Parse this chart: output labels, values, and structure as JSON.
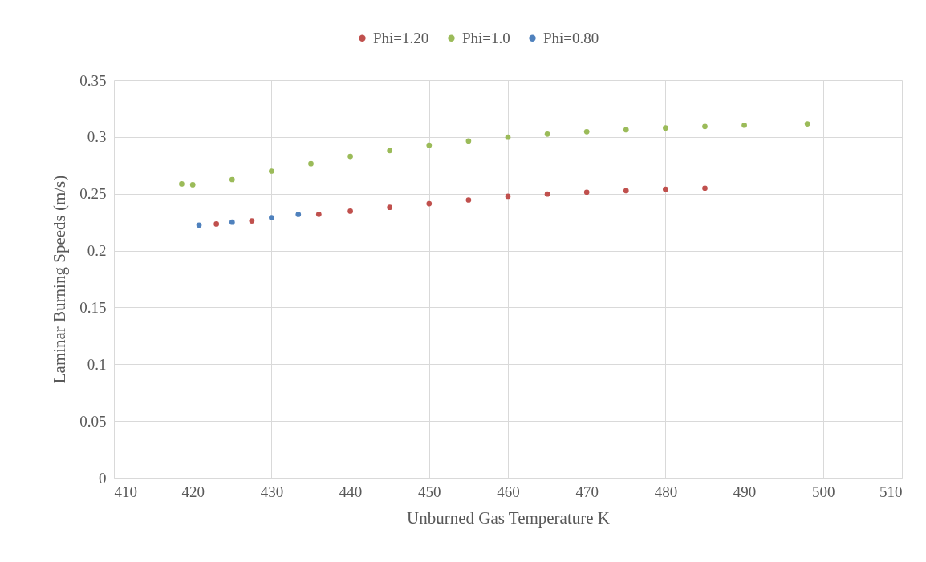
{
  "chart_data": {
    "type": "scatter",
    "xlabel": "Unburned Gas Temperature K",
    "ylabel": "Laminar Burning Speeds (m/s)",
    "xlim": [
      410,
      510
    ],
    "xticks": [
      410,
      420,
      430,
      440,
      450,
      460,
      470,
      480,
      490,
      500,
      510
    ],
    "ylim": [
      0,
      0.35
    ],
    "yticks": [
      0,
      0.05,
      0.1,
      0.15,
      0.2,
      0.25,
      0.3,
      0.35
    ],
    "grid": true,
    "legend": "top",
    "marker": "circle",
    "series": [
      {
        "name": "Phi=1.20",
        "color": "#c0504d",
        "x": [
          423,
          427.5,
          436,
          440,
          445,
          450,
          455,
          460,
          465,
          470,
          475,
          480,
          485
        ],
        "values": [
          0.2234,
          0.2261,
          0.2319,
          0.2347,
          0.238,
          0.2413,
          0.2445,
          0.2477,
          0.2497,
          0.2514,
          0.2527,
          0.2539,
          0.2549
        ]
      },
      {
        "name": "Phi=1.0",
        "color": "#9bbb59",
        "x": [
          418.6,
          420,
          425,
          430,
          435,
          440,
          445,
          450,
          455,
          460,
          465,
          470,
          475,
          480,
          485,
          490,
          498
        ],
        "values": [
          0.2587,
          0.258,
          0.2625,
          0.2699,
          0.2765,
          0.2829,
          0.288,
          0.2927,
          0.2965,
          0.2998,
          0.3025,
          0.3046,
          0.3063,
          0.3079,
          0.3092,
          0.3103,
          0.3115
        ]
      },
      {
        "name": "Phi=0.80",
        "color": "#4f81bd",
        "x": [
          420.8,
          425,
          430,
          433.4
        ],
        "values": [
          0.2224,
          0.225,
          0.2289,
          0.2318
        ]
      }
    ]
  }
}
